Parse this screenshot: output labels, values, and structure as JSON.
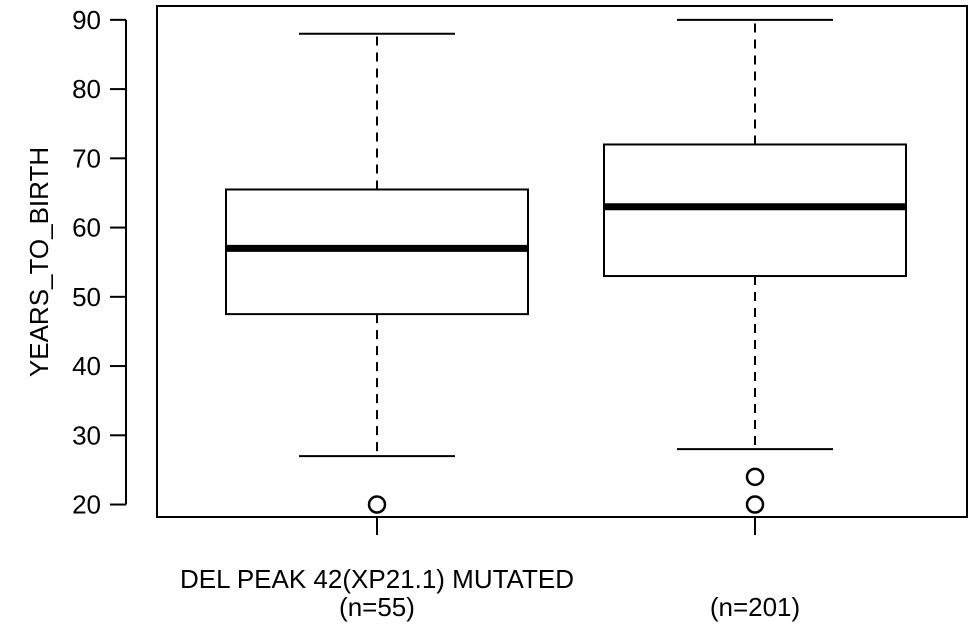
{
  "chart_data": {
    "type": "box",
    "ylabel": "YEARS_TO_BIRTH",
    "xlabel": "",
    "ylim": [
      18.2,
      92
    ],
    "yticks": [
      20,
      30,
      40,
      50,
      60,
      70,
      80,
      90
    ],
    "group_title": "DEL PEAK 42(XP21.1) MUTATED",
    "categories": [
      "(n=55)",
      "(n=201)"
    ],
    "boxes": [
      {
        "label": "(n=55)",
        "whisker_low": 27,
        "q1": 47.5,
        "median": 57,
        "q3": 65.5,
        "whisker_high": 88,
        "outliers": [
          20
        ]
      },
      {
        "label": "(n=201)",
        "whisker_low": 28,
        "q1": 53,
        "median": 63,
        "q3": 72,
        "whisker_high": 90,
        "outliers": [
          20,
          24
        ]
      }
    ]
  }
}
